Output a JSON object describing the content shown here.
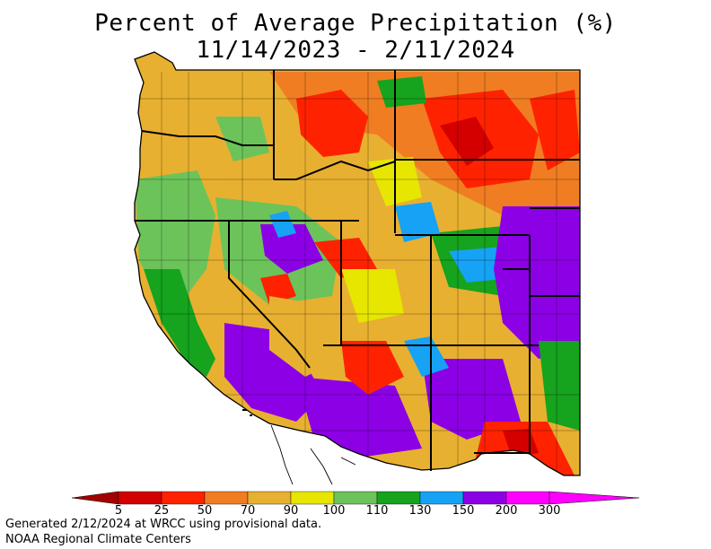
{
  "title": {
    "line1": "Percent of Average Precipitation (%)",
    "line2": "11/14/2023 - 2/11/2024"
  },
  "legend": {
    "ticks": [
      "5",
      "25",
      "50",
      "70",
      "90",
      "100",
      "110",
      "130",
      "150",
      "200",
      "300"
    ],
    "colors": [
      "#a30000",
      "#d40000",
      "#ff2200",
      "#f07d22",
      "#e8b030",
      "#e6e600",
      "#6cc35a",
      "#16a31e",
      "#16a2f5",
      "#8c00e6",
      "#ff00ff"
    ]
  },
  "footer": {
    "line1": "Generated 2/12/2024 at WRCC using provisional data.",
    "line2": "NOAA Regional Climate Centers"
  }
}
